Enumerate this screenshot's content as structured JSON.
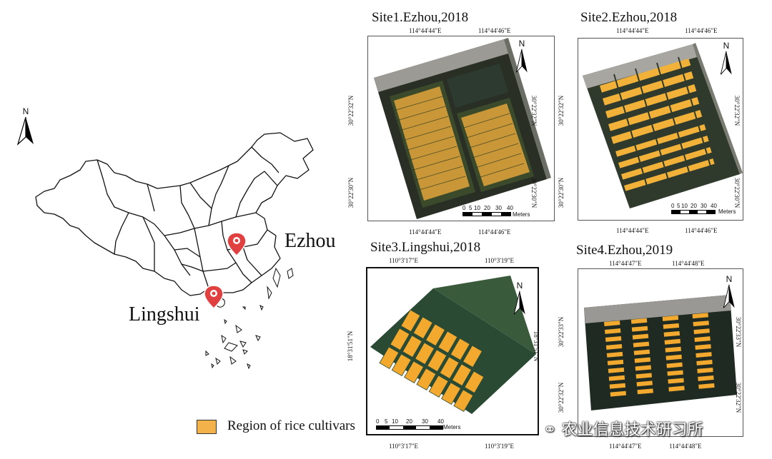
{
  "map": {
    "north_label": "N",
    "places": {
      "ezhou": "Ezhou",
      "lingshui": "Lingshui"
    }
  },
  "legend": {
    "label": "Region of rice cultivars",
    "color": "#f4b24a"
  },
  "watermark": "农业信息技术研习所",
  "scale_units": "Meters",
  "scale_ticks": [
    "0",
    "5",
    "10",
    "20",
    "30",
    "40"
  ],
  "sites": [
    {
      "title": "Site1.Ezhou,2018",
      "top_coords": [
        "114°44'44\"E",
        "114°44'46\"E"
      ],
      "bottom_coords": [
        "114°44'44\"E",
        "114°44'46\"E"
      ],
      "left_coords": [
        "30°22'32\"N",
        "30°22'30\"N"
      ],
      "right_coords": [
        "30°22'32\"N",
        "30°22'30\"N"
      ]
    },
    {
      "title": "Site2.Ezhou,2018",
      "top_coords": [
        "114°44'44\"E",
        "114°44'46\"E"
      ],
      "bottom_coords": [
        "114°44'44\"E",
        "114°44'46\"E"
      ],
      "left_coords": [
        "30°22'32\"N",
        "30°22'30\"N"
      ],
      "right_coords": [
        "30°22'32\"N",
        "30°22'30\"N"
      ]
    },
    {
      "title": "Site3.Lingshui,2018",
      "top_coords": [
        "110°3'17\"E",
        "110°3'19\"E"
      ],
      "bottom_coords": [
        "110°3'17\"E",
        "110°3'19\"E"
      ],
      "left_coords": [
        "18°31'51\"N"
      ],
      "right_coords": [
        "18°31'51\"N"
      ]
    },
    {
      "title": "Site4.Ezhou,2019",
      "top_coords": [
        "114°44'47\"E",
        "114°44'48\"E"
      ],
      "bottom_coords": [
        "114°44'47\"E",
        "114°44'48\"E"
      ],
      "left_coords": [
        "30°22'33\"N",
        "30°22'32\"N"
      ],
      "right_coords": [
        "30°22'33\"N",
        "30°22'32\"N"
      ]
    }
  ]
}
